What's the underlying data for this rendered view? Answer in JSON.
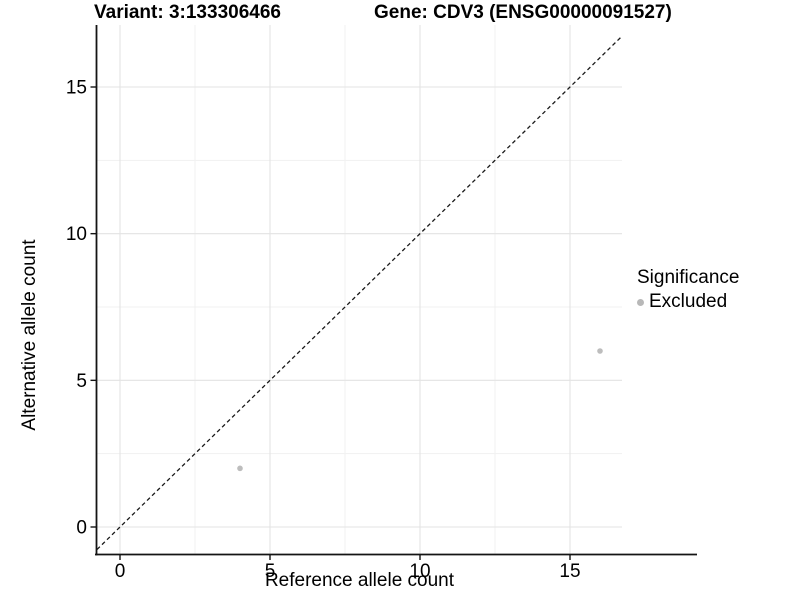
{
  "header": {
    "variant_title": "Variant: 3:133306466",
    "gene_title": "Gene: CDV3 (ENSG00000091527)"
  },
  "chart_data": {
    "type": "scatter",
    "xlabel": "Reference allele count",
    "ylabel": "Alternative allele count",
    "xlim": [
      -0.767,
      16.733
    ],
    "ylim": [
      -0.92,
      17.12
    ],
    "x_ticks": [
      0,
      5,
      10,
      15
    ],
    "y_ticks": [
      0,
      5,
      10,
      15
    ],
    "x_minor_ticks": [
      2.5,
      7.5,
      12.5
    ],
    "y_minor_ticks": [
      2.5,
      7.5,
      12.5
    ],
    "grid": true,
    "identity_line": {
      "slope": 1,
      "intercept": 0,
      "style": "dashed",
      "color": "#1a1a1a"
    },
    "series": [
      {
        "name": "Excluded",
        "color": "#bdbdbd",
        "points": [
          {
            "x": 4,
            "y": 2
          },
          {
            "x": 16,
            "y": 6
          }
        ]
      }
    ],
    "legend": {
      "title": "Significance",
      "position": "right",
      "items": [
        {
          "label": "Excluded",
          "color": "#bdbdbd",
          "marker": "circle"
        }
      ]
    },
    "colors": {
      "grid_major": "#e3e3e3",
      "grid_minor": "#f1f1f1",
      "axis_line": "#141414",
      "tick_text": "#000000",
      "point": "#bdbdbd"
    }
  }
}
